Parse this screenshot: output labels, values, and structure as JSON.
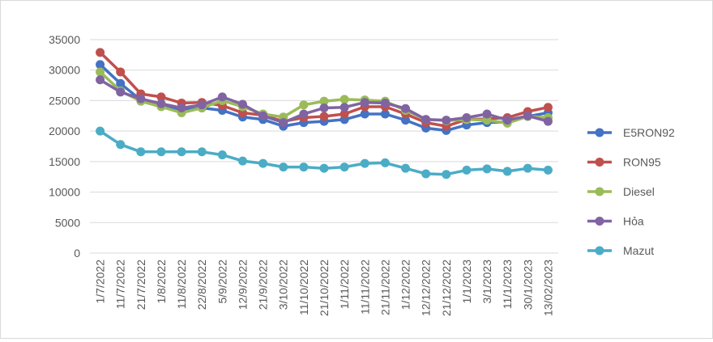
{
  "chart_data": {
    "type": "line",
    "title": "",
    "xlabel": "",
    "ylabel": "",
    "ylim": [
      0,
      35000
    ],
    "yticks": [
      0,
      5000,
      10000,
      15000,
      20000,
      25000,
      30000,
      35000
    ],
    "grid": "horizontal",
    "legend_position": "right",
    "categories": [
      "1/7/2022",
      "11/7/2022",
      "21/7/2022",
      "1/8/2022",
      "11/8/2022",
      "22/8/2022",
      "5/9/2022",
      "12/9/2022",
      "21/9/2022",
      "3/10/2022",
      "11/10/2022",
      "21/10/2022",
      "1/11/2022",
      "11/11/2022",
      "21/11/2022",
      "1/12/2022",
      "12/12/2022",
      "21/12/2022",
      "1/1/2023",
      "3/1/2023",
      "11/1/2023",
      "30/1/2023",
      "13/02/2023"
    ],
    "series": [
      {
        "name": "E5RON92",
        "color": "#4472C4",
        "values": [
          30900,
          27800,
          25100,
          24200,
          23400,
          23800,
          23400,
          22300,
          21900,
          20800,
          21400,
          21600,
          21900,
          22800,
          22800,
          21800,
          20500,
          20100,
          21000,
          21400,
          21500,
          22400,
          23000
        ]
      },
      {
        "name": "RON95",
        "color": "#C0504D",
        "values": [
          32900,
          29700,
          26100,
          25600,
          24600,
          24700,
          24200,
          23000,
          22600,
          21600,
          22200,
          22400,
          22800,
          24000,
          24000,
          22800,
          21400,
          20800,
          21900,
          22000,
          22200,
          23200,
          23900
        ]
      },
      {
        "name": "Diesel",
        "color": "#9BBB59",
        "values": [
          29700,
          26600,
          24900,
          24000,
          23000,
          23800,
          25000,
          24000,
          22800,
          22300,
          24300,
          24900,
          25200,
          25100,
          24900,
          23400,
          21900,
          21700,
          21900,
          21800,
          21300,
          22400,
          22200
        ]
      },
      {
        "name": "Hỏa",
        "color": "#8064A2",
        "values": [
          28400,
          26400,
          25300,
          24500,
          23800,
          24300,
          25600,
          24400,
          22500,
          21400,
          22800,
          23800,
          23900,
          24700,
          24600,
          23700,
          21900,
          21800,
          22200,
          22800,
          21800,
          22500,
          21600
        ]
      },
      {
        "name": "Mazut",
        "color": "#4BACC6",
        "values": [
          20000,
          17800,
          16600,
          16600,
          16600,
          16600,
          16100,
          15100,
          14700,
          14100,
          14100,
          13900,
          14100,
          14700,
          14800,
          13900,
          13000,
          12900,
          13600,
          13800,
          13400,
          13900,
          13600
        ]
      }
    ]
  }
}
